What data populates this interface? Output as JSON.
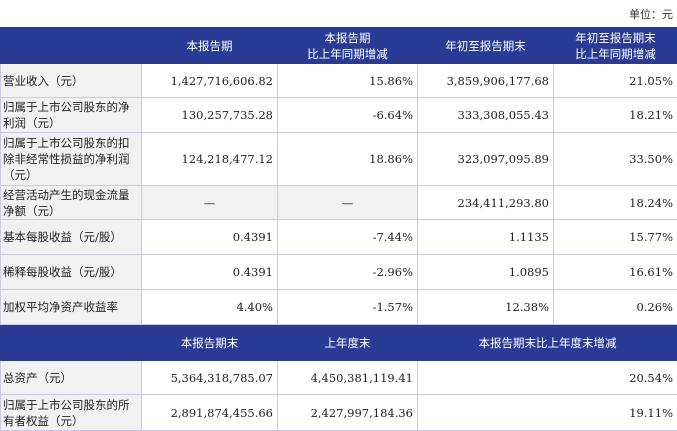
{
  "unit_label": "单位：元",
  "header1": [
    "",
    "本报告期",
    "本报告期\n比上年同期增减",
    "年初至报告期末",
    "年初至报告期末\n比上年同期增减"
  ],
  "rows1": [
    {
      "label": "营业收入（元）",
      "values": [
        "1,427,716,606.82",
        "15.86%",
        "3,859,906,177.68",
        "21.05%"
      ]
    },
    {
      "label": "归属于上市公司股东的净利润（元）",
      "values": [
        "130,257,735.28",
        "-6.64%",
        "333,308,055.43",
        "18.21%"
      ]
    },
    {
      "label": "归属于上市公司股东的扣除非经常性损益的净利润（元）",
      "values": [
        "124,218,477.12",
        "18.86%",
        "323,097,095.89",
        "33.50%"
      ]
    },
    {
      "label": "经营活动产生的现金流量净额（元）",
      "values": [
        "—",
        "—",
        "234,411,293.80",
        "18.24%"
      ]
    },
    {
      "label": "基本每股收益（元/股）",
      "values": [
        "0.4391",
        "-7.44%",
        "1.1135",
        "15.77%"
      ]
    },
    {
      "label": "稀释每股收益（元/股）",
      "values": [
        "0.4391",
        "-2.96%",
        "1.0895",
        "16.61%"
      ]
    },
    {
      "label": "加权平均净资产收益率",
      "values": [
        "4.40%",
        "-1.57%",
        "12.38%",
        "0.26%"
      ]
    }
  ],
  "header2": [
    "",
    "本报告期末",
    "上年度末",
    "本报告期末比上年度末增减"
  ],
  "rows2": [
    {
      "label": "总资产（元）",
      "values": [
        "5,364,318,785.07",
        "4,450,381,119.41",
        "20.54%"
      ]
    },
    {
      "label": "归属于上市公司股东的所有者权益（元）",
      "values": [
        "2,891,874,455.66",
        "2,427,997,184.36",
        "19.11%"
      ]
    }
  ]
}
